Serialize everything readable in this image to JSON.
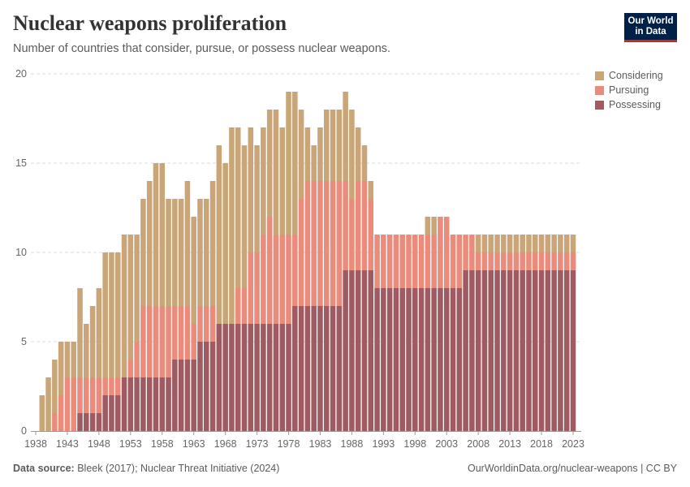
{
  "header": {
    "title": "Nuclear weapons proliferation",
    "subtitle": "Number of countries that consider, pursue, or possess nuclear weapons.",
    "logo_line1": "Our World",
    "logo_line2": "in Data"
  },
  "footer": {
    "source_label": "Data source:",
    "source_text": " Bleek (2017); Nuclear Threat Initiative (2024)",
    "url": "OurWorldinData.org/nuclear-weapons | CC BY"
  },
  "colors": {
    "Considering": "#c9a577",
    "Pursuing": "#eb8b7b",
    "Possessing": "#a05a62",
    "logo_bg": "#002147",
    "logo_accent": "#ce261e"
  },
  "chart_data": {
    "type": "bar",
    "stacked": true,
    "title": "Nuclear weapons proliferation",
    "subtitle": "Number of countries that consider, pursue, or possess nuclear weapons.",
    "xlabel": "",
    "ylabel": "",
    "ylim": [
      0,
      20
    ],
    "y_ticks": [
      0,
      5,
      10,
      15,
      20
    ],
    "x_ticks": [
      1938,
      1943,
      1948,
      1953,
      1958,
      1963,
      1968,
      1973,
      1978,
      1983,
      1988,
      1993,
      1998,
      2003,
      2008,
      2013,
      2018,
      2023
    ],
    "grid": "horizontal dashed",
    "legend_position": "right",
    "legend": [
      "Considering",
      "Pursuing",
      "Possessing"
    ],
    "categories": [
      1938,
      1939,
      1940,
      1941,
      1942,
      1943,
      1944,
      1945,
      1946,
      1947,
      1948,
      1949,
      1950,
      1951,
      1952,
      1953,
      1954,
      1955,
      1956,
      1957,
      1958,
      1959,
      1960,
      1961,
      1962,
      1963,
      1964,
      1965,
      1966,
      1967,
      1968,
      1969,
      1970,
      1971,
      1972,
      1973,
      1974,
      1975,
      1976,
      1977,
      1978,
      1979,
      1980,
      1981,
      1982,
      1983,
      1984,
      1985,
      1986,
      1987,
      1988,
      1989,
      1990,
      1991,
      1992,
      1993,
      1994,
      1995,
      1996,
      1997,
      1998,
      1999,
      2000,
      2001,
      2002,
      2003,
      2004,
      2005,
      2006,
      2007,
      2008,
      2009,
      2010,
      2011,
      2012,
      2013,
      2014,
      2015,
      2016,
      2017,
      2018,
      2019,
      2020,
      2021,
      2022,
      2023
    ],
    "series": [
      {
        "name": "Possessing",
        "values": [
          0,
          0,
          0,
          0,
          0,
          0,
          0,
          1,
          1,
          1,
          1,
          2,
          2,
          2,
          3,
          3,
          3,
          3,
          3,
          3,
          3,
          3,
          4,
          4,
          4,
          4,
          5,
          5,
          5,
          6,
          6,
          6,
          6,
          6,
          6,
          6,
          6,
          6,
          6,
          6,
          6,
          7,
          7,
          7,
          7,
          7,
          7,
          7,
          7,
          9,
          9,
          9,
          9,
          9,
          8,
          8,
          8,
          8,
          8,
          8,
          8,
          8,
          8,
          8,
          8,
          8,
          8,
          8,
          9,
          9,
          9,
          9,
          9,
          9,
          9,
          9,
          9,
          9,
          9,
          9,
          9,
          9,
          9,
          9,
          9,
          9
        ]
      },
      {
        "name": "Pursuing",
        "values": [
          0,
          0,
          0,
          1,
          2,
          3,
          3,
          2,
          2,
          2,
          2,
          1,
          1,
          1,
          0,
          1,
          2,
          4,
          4,
          4,
          4,
          4,
          3,
          3,
          3,
          2,
          2,
          2,
          2,
          0,
          0,
          0,
          2,
          2,
          4,
          4,
          5,
          6,
          5,
          5,
          5,
          4,
          6,
          7,
          7,
          7,
          7,
          7,
          7,
          5,
          4,
          5,
          5,
          4,
          3,
          3,
          3,
          3,
          3,
          3,
          3,
          3,
          3,
          3,
          4,
          4,
          3,
          3,
          2,
          2,
          1,
          1,
          1,
          1,
          1,
          1,
          1,
          1,
          1,
          1,
          1,
          1,
          1,
          1,
          1,
          1
        ]
      },
      {
        "name": "Considering",
        "values": [
          0,
          2,
          3,
          3,
          3,
          2,
          2,
          5,
          3,
          4,
          5,
          7,
          7,
          7,
          8,
          7,
          6,
          6,
          7,
          8,
          8,
          6,
          6,
          6,
          7,
          6,
          6,
          6,
          7,
          10,
          9,
          11,
          9,
          8,
          7,
          6,
          6,
          6,
          7,
          6,
          8,
          8,
          5,
          3,
          2,
          3,
          4,
          4,
          4,
          5,
          5,
          3,
          2,
          1,
          0,
          0,
          0,
          0,
          0,
          0,
          0,
          0,
          1,
          1,
          0,
          0,
          0,
          0,
          0,
          0,
          1,
          1,
          1,
          1,
          1,
          1,
          1,
          1,
          1,
          1,
          1,
          1,
          1,
          1,
          1,
          1
        ]
      }
    ]
  }
}
